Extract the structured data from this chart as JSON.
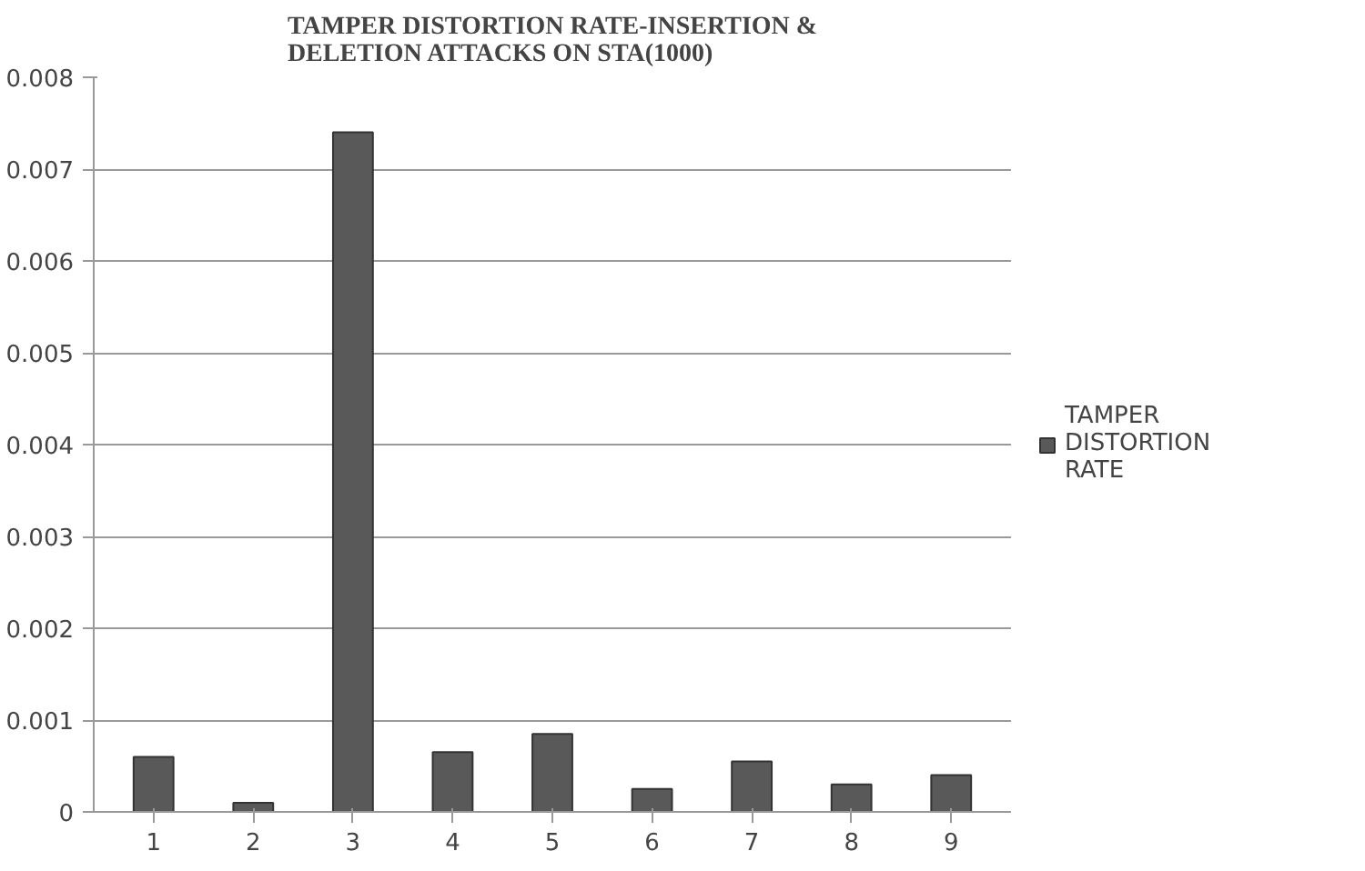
{
  "chart_data": {
    "type": "bar",
    "title": "TAMPER DISTORTION RATE-INSERTION &\nDELETION ATTACKS ON STA(1000)",
    "categories": [
      "1",
      "2",
      "3",
      "4",
      "5",
      "6",
      "7",
      "8",
      "9"
    ],
    "series": [
      {
        "name": "TAMPER\nDISTORTION\nRATE",
        "color": "#595959",
        "values": [
          0.0006,
          0.0001,
          0.0074,
          0.00065,
          0.00085,
          0.00025,
          0.00055,
          0.0003,
          0.0004
        ]
      }
    ],
    "ylim": [
      0,
      0.008
    ],
    "yticks": [
      0,
      0.001,
      0.002,
      0.003,
      0.004,
      0.005,
      0.006,
      0.007,
      0.008
    ],
    "grid": "y",
    "legend": "right"
  }
}
